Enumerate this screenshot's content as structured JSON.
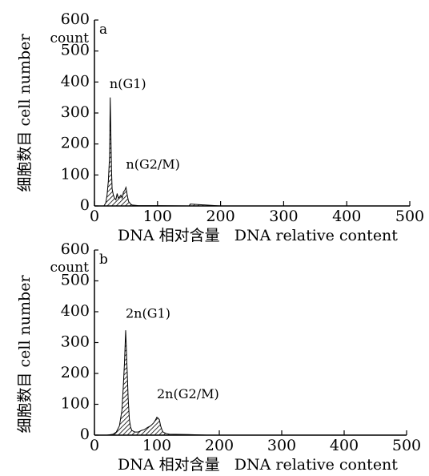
{
  "chart_data": [
    {
      "type": "area",
      "panel_label": "a",
      "ylabel": "细胞数目 cell number",
      "count_label": "count",
      "xlabel": "DNA 相对含量   DNA relative content",
      "xlim": [
        0,
        500
      ],
      "ylim": [
        0,
        600
      ],
      "x_ticks": [
        0,
        100,
        200,
        300,
        400,
        500
      ],
      "y_ticks": [
        0,
        100,
        200,
        300,
        400,
        500,
        600
      ],
      "annotations": [
        {
          "text": "n(G1)",
          "x": 24,
          "y": 380
        },
        {
          "text": "n(G2/M)",
          "x": 50,
          "y": 120
        }
      ],
      "x": [
        15,
        18,
        20,
        22,
        24,
        25,
        26,
        27,
        28,
        30,
        32,
        34,
        36,
        38,
        40,
        42,
        44,
        46,
        48,
        50,
        52,
        54,
        56,
        58,
        60,
        65,
        70,
        80,
        100,
        150,
        152,
        200,
        500
      ],
      "y": [
        0,
        10,
        35,
        80,
        160,
        350,
        240,
        120,
        55,
        35,
        25,
        20,
        40,
        25,
        30,
        35,
        25,
        45,
        50,
        60,
        35,
        15,
        10,
        5,
        3,
        2,
        1,
        1,
        1,
        0,
        6,
        0,
        0
      ]
    },
    {
      "type": "area",
      "panel_label": "b",
      "ylabel": "细胞数目 cell number",
      "count_label": "count",
      "xlabel": "DNA 相对含量   DNA relative content",
      "xlim": [
        0,
        500
      ],
      "ylim": [
        0,
        600
      ],
      "x_ticks": [
        0,
        100,
        200,
        300,
        400,
        500
      ],
      "y_ticks": [
        0,
        100,
        200,
        300,
        400,
        500,
        600
      ],
      "annotations": [
        {
          "text": "2n(G1)",
          "x": 50,
          "y": 380
        },
        {
          "text": "2n(G2/M)",
          "x": 100,
          "y": 120
        }
      ],
      "x": [
        20,
        30,
        35,
        40,
        44,
        46,
        48,
        50,
        51,
        52,
        54,
        56,
        58,
        60,
        65,
        70,
        75,
        80,
        85,
        90,
        95,
        98,
        100,
        102,
        104,
        106,
        108,
        110,
        115,
        120,
        150,
        180,
        500
      ],
      "y": [
        0,
        3,
        10,
        30,
        80,
        150,
        230,
        340,
        290,
        230,
        120,
        50,
        25,
        15,
        10,
        10,
        15,
        18,
        25,
        30,
        40,
        50,
        58,
        55,
        50,
        30,
        18,
        10,
        5,
        3,
        2,
        0,
        0
      ]
    }
  ]
}
